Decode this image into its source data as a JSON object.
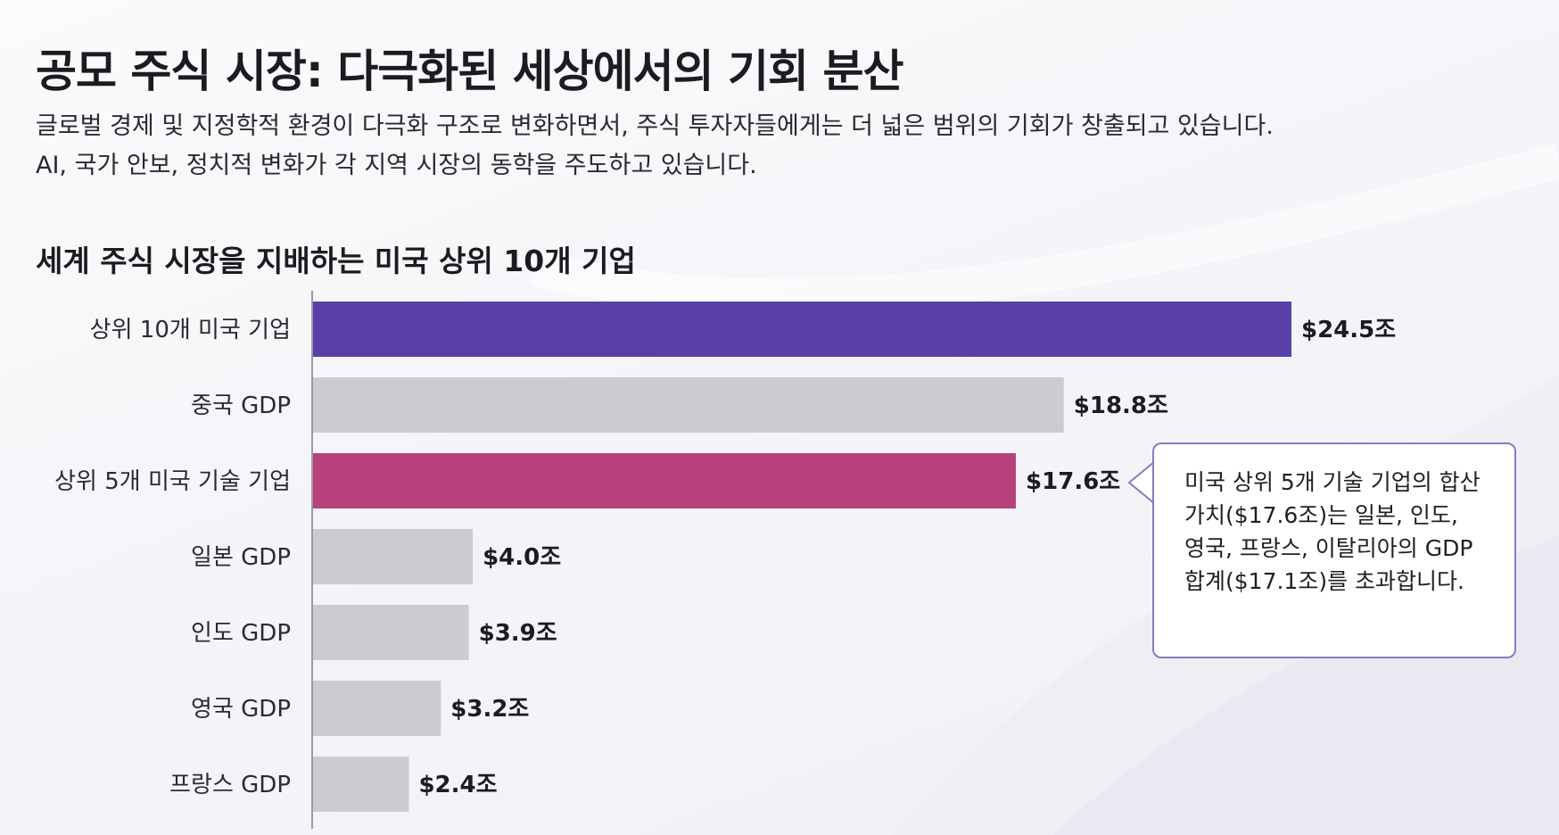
{
  "header": {
    "title": "공모 주식 시장: 다극화된 세상에서의 기회 분산",
    "intro_line1": "글로벌 경제 및 지정학적 환경이 다극화 구조로 변화하면서, 주식 투자자들에게는 더 넓은 범위의 기회가 창출되고 있습니다.",
    "intro_line2": "AI, 국가 안보, 정치적 변화가 각 지역 시장의 동학을 주도하고 있습니다."
  },
  "chart_data": {
    "type": "bar",
    "orientation": "horizontal",
    "title": "세계 주식 시장을 지배하는 미국 상위 10개 기업",
    "categories": [
      "상위 10개 미국 기업",
      "중국 GDP",
      "상위 5개 미국 기술 기업",
      "일본 GDP",
      "인도 GDP",
      "영국 GDP",
      "프랑스 GDP"
    ],
    "values": [
      24.5,
      18.8,
      17.6,
      4.0,
      3.9,
      3.2,
      2.4
    ],
    "value_labels": [
      "$24.5조",
      "$18.8조",
      "$17.6조",
      "$4.0조",
      "$3.9조",
      "$3.2조",
      "$2.4조"
    ],
    "unit": "조 달러",
    "xlim": [
      0,
      24.5
    ],
    "xlabel": "",
    "ylabel": "",
    "grid": false,
    "bar_colors": [
      "#5a40a8",
      "#cbcbd0",
      "#b8417c",
      "#cbcbd0",
      "#cbcbd0",
      "#cbcbd0",
      "#cbcbd0"
    ]
  },
  "callout": {
    "text": "미국 상위 5개 기술 기업의 합산 가치($17.6조)는 일본, 인도, 영국, 프랑스, 이탈리아의 GDP 합계($17.1조)를 초과합니다."
  },
  "colors": {
    "accent_purple": "#5a40a8",
    "accent_magenta": "#b8417c",
    "neutral_bar": "#cbcbd0",
    "callout_border": "#8a7ac0"
  }
}
